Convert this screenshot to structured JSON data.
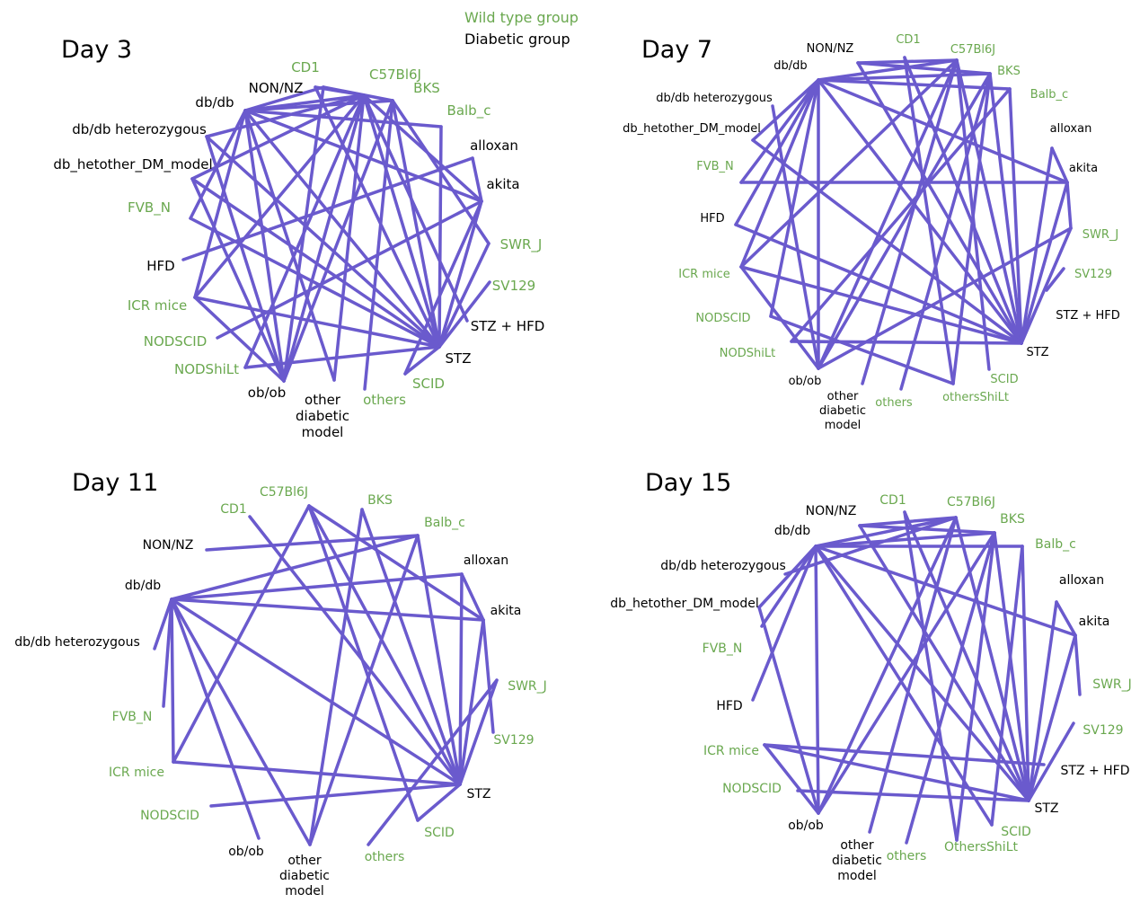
{
  "colors": {
    "wild": "#6aa84f",
    "diabetic": "#000000",
    "edge": "#6a5acd"
  },
  "legend": {
    "wild_label": "Wild type group",
    "diabetic_label": "Diabetic group"
  },
  "panels": [
    {
      "title": "Day 3",
      "nodes": [
        {
          "id": "NON/NZ",
          "label": "NON/NZ",
          "group": "diabetic"
        },
        {
          "id": "CD1",
          "label": "CD1",
          "group": "wild"
        },
        {
          "id": "C57Bl6J",
          "label": "C57Bl6J",
          "group": "wild"
        },
        {
          "id": "BKS",
          "label": "BKS",
          "group": "wild"
        },
        {
          "id": "Balb_c",
          "label": "Balb_c",
          "group": "wild"
        },
        {
          "id": "alloxan",
          "label": "alloxan",
          "group": "diabetic"
        },
        {
          "id": "akita",
          "label": "akita",
          "group": "diabetic"
        },
        {
          "id": "SWR_J",
          "label": "SWR_J",
          "group": "wild"
        },
        {
          "id": "SV129",
          "label": "SV129",
          "group": "wild"
        },
        {
          "id": "STZ + HFD",
          "label": "STZ + HFD",
          "group": "diabetic"
        },
        {
          "id": "STZ",
          "label": "STZ",
          "group": "diabetic"
        },
        {
          "id": "SCID",
          "label": "SCID",
          "group": "wild"
        },
        {
          "id": "others",
          "label": "others",
          "group": "wild"
        },
        {
          "id": "other diabetic model",
          "label": "other diabetic model",
          "group": "diabetic"
        },
        {
          "id": "ob/ob",
          "label": "ob/ob",
          "group": "diabetic"
        },
        {
          "id": "NODShiLt",
          "label": "NODShiLt",
          "group": "wild"
        },
        {
          "id": "NODSCID",
          "label": "NODSCID",
          "group": "wild"
        },
        {
          "id": "ICR mice",
          "label": "ICR mice",
          "group": "wild"
        },
        {
          "id": "HFD",
          "label": "HFD",
          "group": "diabetic"
        },
        {
          "id": "FVB_N",
          "label": "FVB_N",
          "group": "wild"
        },
        {
          "id": "db_hetother_DM_model",
          "label": "db_hetother_DM_model",
          "group": "diabetic"
        },
        {
          "id": "db/db heterozygous",
          "label": "db/db heterozygous",
          "group": "diabetic"
        },
        {
          "id": "db/db",
          "label": "db/db",
          "group": "diabetic"
        }
      ],
      "edges": [
        [
          "db/db",
          "CD1"
        ],
        [
          "db/db",
          "C57Bl6J"
        ],
        [
          "db/db",
          "BKS"
        ],
        [
          "db/db",
          "Balb_c"
        ],
        [
          "db/db",
          "akita"
        ],
        [
          "db/db",
          "STZ"
        ],
        [
          "db/db",
          "ob/ob"
        ],
        [
          "db/db",
          "other diabetic model"
        ],
        [
          "db/db",
          "ICR mice"
        ],
        [
          "db/db",
          "FVB_N"
        ],
        [
          "NON/NZ",
          "C57Bl6J"
        ],
        [
          "NON/NZ",
          "STZ"
        ],
        [
          "CD1",
          "BKS"
        ],
        [
          "CD1",
          "ob/ob"
        ],
        [
          "C57Bl6J",
          "akita"
        ],
        [
          "C57Bl6J",
          "STZ"
        ],
        [
          "C57Bl6J",
          "ob/ob"
        ],
        [
          "C57Bl6J",
          "NODShiLt"
        ],
        [
          "C57Bl6J",
          "other diabetic model"
        ],
        [
          "C57Bl6J",
          "ICR mice"
        ],
        [
          "C57Bl6J",
          "db/db heterozygous"
        ],
        [
          "C57Bl6J",
          "db_hetother_DM_model"
        ],
        [
          "C57Bl6J",
          "STZ + HFD"
        ],
        [
          "BKS",
          "STZ"
        ],
        [
          "BKS",
          "ob/ob"
        ],
        [
          "BKS",
          "SWR_J"
        ],
        [
          "BKS",
          "others"
        ],
        [
          "Balb_c",
          "STZ"
        ],
        [
          "alloxan",
          "akita"
        ],
        [
          "alloxan",
          "HFD"
        ],
        [
          "akita",
          "STZ"
        ],
        [
          "akita",
          "SCID"
        ],
        [
          "akita",
          "NODSCID"
        ],
        [
          "SWR_J",
          "STZ"
        ],
        [
          "SV129",
          "STZ"
        ],
        [
          "STZ",
          "ICR mice"
        ],
        [
          "STZ",
          "db_hetother_DM_model"
        ],
        [
          "STZ",
          "SCID"
        ],
        [
          "STZ",
          "NODShiLt"
        ],
        [
          "STZ",
          "FVB_N"
        ],
        [
          "db/db heterozygous",
          "ob/ob"
        ],
        [
          "db_hetother_DM_model",
          "ob/ob"
        ],
        [
          "ICR mice",
          "ob/ob"
        ],
        [
          "db/db heterozygous",
          "STZ"
        ]
      ]
    },
    {
      "title": "Day 7",
      "nodes": [
        {
          "id": "NON/NZ",
          "label": "NON/NZ",
          "group": "diabetic"
        },
        {
          "id": "CD1",
          "label": "CD1",
          "group": "wild"
        },
        {
          "id": "C57Bl6J",
          "label": "C57Bl6J",
          "group": "wild"
        },
        {
          "id": "BKS",
          "label": "BKS",
          "group": "wild"
        },
        {
          "id": "Balb_c",
          "label": "Balb_c",
          "group": "wild"
        },
        {
          "id": "alloxan",
          "label": "alloxan",
          "group": "diabetic"
        },
        {
          "id": "akita",
          "label": "akita",
          "group": "diabetic"
        },
        {
          "id": "SWR_J",
          "label": "SWR_J",
          "group": "wild"
        },
        {
          "id": "SV129",
          "label": "SV129",
          "group": "wild"
        },
        {
          "id": "STZ + HFD",
          "label": "STZ + HFD",
          "group": "diabetic"
        },
        {
          "id": "STZ",
          "label": "STZ",
          "group": "diabetic"
        },
        {
          "id": "SCID",
          "label": "SCID",
          "group": "wild"
        },
        {
          "id": "othersShiLt",
          "label": "othersShiLt",
          "group": "wild"
        },
        {
          "id": "others",
          "label": "others",
          "group": "wild"
        },
        {
          "id": "other diabetic model",
          "label": "other diabetic model",
          "group": "diabetic"
        },
        {
          "id": "ob/ob",
          "label": "ob/ob",
          "group": "diabetic"
        },
        {
          "id": "NODShiLt",
          "label": "NODShiLt",
          "group": "wild"
        },
        {
          "id": "NODSCID",
          "label": "NODSCID",
          "group": "wild"
        },
        {
          "id": "ICR mice",
          "label": "ICR mice",
          "group": "wild"
        },
        {
          "id": "HFD",
          "label": "HFD",
          "group": "diabetic"
        },
        {
          "id": "FVB_N",
          "label": "FVB_N",
          "group": "wild"
        },
        {
          "id": "db_hetother_DM_model",
          "label": "db_hetother_DM_model",
          "group": "diabetic"
        },
        {
          "id": "db/db heterozygous",
          "label": "db/db heterozygous",
          "group": "diabetic"
        },
        {
          "id": "db/db",
          "label": "db/db",
          "group": "diabetic"
        }
      ],
      "edges": [
        [
          "db/db",
          "C57Bl6J"
        ],
        [
          "db/db",
          "BKS"
        ],
        [
          "db/db",
          "Balb_c"
        ],
        [
          "db/db",
          "akita"
        ],
        [
          "db/db",
          "STZ"
        ],
        [
          "db/db",
          "ob/ob"
        ],
        [
          "db/db",
          "ICR mice"
        ],
        [
          "db/db",
          "FVB_N"
        ],
        [
          "db/db",
          "HFD"
        ],
        [
          "db/db",
          "NODSCID"
        ],
        [
          "db/db",
          "db_hetother_DM_model"
        ],
        [
          "NON/NZ",
          "C57Bl6J"
        ],
        [
          "NON/NZ",
          "STZ"
        ],
        [
          "NON/NZ",
          "BKS"
        ],
        [
          "CD1",
          "STZ"
        ],
        [
          "CD1",
          "othersShiLt"
        ],
        [
          "C57Bl6J",
          "STZ"
        ],
        [
          "C57Bl6J",
          "ob/ob"
        ],
        [
          "C57Bl6J",
          "other diabetic model"
        ],
        [
          "C57Bl6J",
          "ICR mice"
        ],
        [
          "C57Bl6J",
          "SCID"
        ],
        [
          "BKS",
          "STZ"
        ],
        [
          "BKS",
          "ob/ob"
        ],
        [
          "BKS",
          "others"
        ],
        [
          "BKS",
          "othersShiLt"
        ],
        [
          "Balb_c",
          "STZ"
        ],
        [
          "Balb_c",
          "NODShiLt"
        ],
        [
          "alloxan",
          "akita"
        ],
        [
          "alloxan",
          "STZ"
        ],
        [
          "akita",
          "SWR_J"
        ],
        [
          "akita",
          "STZ"
        ],
        [
          "akita",
          "FVB_N"
        ],
        [
          "SWR_J",
          "STZ"
        ],
        [
          "SWR_J",
          "ob/ob"
        ],
        [
          "SV129",
          "STZ + HFD"
        ],
        [
          "STZ",
          "ICR mice"
        ],
        [
          "STZ",
          "HFD"
        ],
        [
          "STZ",
          "NODShiLt"
        ],
        [
          "ob/ob",
          "db/db heterozygous"
        ],
        [
          "ob/ob",
          "ICR mice"
        ],
        [
          "db_hetother_DM_model",
          "STZ"
        ],
        [
          "NODSCID",
          "othersShiLt"
        ]
      ]
    },
    {
      "title": "Day 11",
      "nodes": [
        {
          "id": "NON/NZ",
          "label": "NON/NZ",
          "group": "diabetic"
        },
        {
          "id": "CD1",
          "label": "CD1",
          "group": "wild"
        },
        {
          "id": "C57Bl6J",
          "label": "C57Bl6J",
          "group": "wild"
        },
        {
          "id": "BKS",
          "label": "BKS",
          "group": "wild"
        },
        {
          "id": "Balb_c",
          "label": "Balb_c",
          "group": "wild"
        },
        {
          "id": "alloxan",
          "label": "alloxan",
          "group": "diabetic"
        },
        {
          "id": "akita",
          "label": "akita",
          "group": "diabetic"
        },
        {
          "id": "SWR_J",
          "label": "SWR_J",
          "group": "wild"
        },
        {
          "id": "SV129",
          "label": "SV129",
          "group": "wild"
        },
        {
          "id": "STZ",
          "label": "STZ",
          "group": "diabetic"
        },
        {
          "id": "SCID",
          "label": "SCID",
          "group": "wild"
        },
        {
          "id": "others",
          "label": "others",
          "group": "wild"
        },
        {
          "id": "other diabetic model",
          "label": "other diabetic model",
          "group": "diabetic"
        },
        {
          "id": "ob/ob",
          "label": "ob/ob",
          "group": "diabetic"
        },
        {
          "id": "NODSCID",
          "label": "NODSCID",
          "group": "wild"
        },
        {
          "id": "ICR mice",
          "label": "ICR mice",
          "group": "wild"
        },
        {
          "id": "FVB_N",
          "label": "FVB_N",
          "group": "wild"
        },
        {
          "id": "db/db heterozygous",
          "label": "db/db heterozygous",
          "group": "diabetic"
        },
        {
          "id": "db/db",
          "label": "db/db",
          "group": "diabetic"
        }
      ],
      "edges": [
        [
          "db/db",
          "Balb_c"
        ],
        [
          "db/db",
          "alloxan"
        ],
        [
          "db/db",
          "akita"
        ],
        [
          "db/db",
          "STZ"
        ],
        [
          "db/db",
          "ob/ob"
        ],
        [
          "db/db",
          "ICR mice"
        ],
        [
          "db/db",
          "db/db heterozygous"
        ],
        [
          "db/db",
          "FVB_N"
        ],
        [
          "NON/NZ",
          "Balb_c"
        ],
        [
          "CD1",
          "STZ"
        ],
        [
          "C57Bl6J",
          "ICR mice"
        ],
        [
          "C57Bl6J",
          "STZ"
        ],
        [
          "C57Bl6J",
          "akita"
        ],
        [
          "C57Bl6J",
          "SCID"
        ],
        [
          "BKS",
          "STZ"
        ],
        [
          "BKS",
          "other diabetic model"
        ],
        [
          "Balb_c",
          "STZ"
        ],
        [
          "Balb_c",
          "other diabetic model"
        ],
        [
          "alloxan",
          "akita"
        ],
        [
          "alloxan",
          "STZ"
        ],
        [
          "akita",
          "SV129"
        ],
        [
          "akita",
          "STZ"
        ],
        [
          "SWR_J",
          "STZ"
        ],
        [
          "SWR_J",
          "others"
        ],
        [
          "STZ",
          "ICR mice"
        ],
        [
          "STZ",
          "NODSCID"
        ],
        [
          "STZ",
          "SCID"
        ],
        [
          "db/db",
          "other diabetic model"
        ]
      ]
    },
    {
      "title": "Day 15",
      "nodes": [
        {
          "id": "NON/NZ",
          "label": "NON/NZ",
          "group": "diabetic"
        },
        {
          "id": "CD1",
          "label": "CD1",
          "group": "wild"
        },
        {
          "id": "C57Bl6J",
          "label": "C57Bl6J",
          "group": "wild"
        },
        {
          "id": "BKS",
          "label": "BKS",
          "group": "wild"
        },
        {
          "id": "Balb_c",
          "label": "Balb_c",
          "group": "wild"
        },
        {
          "id": "alloxan",
          "label": "alloxan",
          "group": "diabetic"
        },
        {
          "id": "akita",
          "label": "akita",
          "group": "diabetic"
        },
        {
          "id": "SWR_J",
          "label": "SWR_J",
          "group": "wild"
        },
        {
          "id": "SV129",
          "label": "SV129",
          "group": "wild"
        },
        {
          "id": "STZ + HFD",
          "label": "STZ + HFD",
          "group": "diabetic"
        },
        {
          "id": "STZ",
          "label": "STZ",
          "group": "diabetic"
        },
        {
          "id": "SCID",
          "label": "SCID",
          "group": "wild"
        },
        {
          "id": "OthersShiLt",
          "label": "OthersShiLt",
          "group": "wild"
        },
        {
          "id": "others",
          "label": "others",
          "group": "wild"
        },
        {
          "id": "other diabetic model",
          "label": "other diabetic model",
          "group": "diabetic"
        },
        {
          "id": "ob/ob",
          "label": "ob/ob",
          "group": "diabetic"
        },
        {
          "id": "NODSCID",
          "label": "NODSCID",
          "group": "wild"
        },
        {
          "id": "ICR mice",
          "label": "ICR mice",
          "group": "wild"
        },
        {
          "id": "HFD",
          "label": "HFD",
          "group": "diabetic"
        },
        {
          "id": "FVB_N",
          "label": "FVB_N",
          "group": "wild"
        },
        {
          "id": "db_hetother_DM_model",
          "label": "db_hetother_DM_model",
          "group": "diabetic"
        },
        {
          "id": "db/db heterozygous",
          "label": "db/db heterozygous",
          "group": "diabetic"
        },
        {
          "id": "db/db",
          "label": "db/db",
          "group": "diabetic"
        }
      ],
      "edges": [
        [
          "db/db",
          "C57Bl6J"
        ],
        [
          "db/db",
          "BKS"
        ],
        [
          "db/db",
          "Balb_c"
        ],
        [
          "db/db",
          "akita"
        ],
        [
          "db/db",
          "STZ"
        ],
        [
          "db/db",
          "ob/ob"
        ],
        [
          "db/db",
          "FVB_N"
        ],
        [
          "db/db",
          "HFD"
        ],
        [
          "db/db",
          "db_hetother_DM_model"
        ],
        [
          "db/db",
          "SCID"
        ],
        [
          "NON/NZ",
          "C57Bl6J"
        ],
        [
          "NON/NZ",
          "BKS"
        ],
        [
          "NON/NZ",
          "STZ"
        ],
        [
          "CD1",
          "STZ"
        ],
        [
          "CD1",
          "OthersShiLt"
        ],
        [
          "C57Bl6J",
          "ob/ob"
        ],
        [
          "C57Bl6J",
          "other diabetic model"
        ],
        [
          "C57Bl6J",
          "STZ"
        ],
        [
          "C57Bl6J",
          "db/db heterozygous"
        ],
        [
          "BKS",
          "STZ"
        ],
        [
          "BKS",
          "others"
        ],
        [
          "BKS",
          "OthersShiLt"
        ],
        [
          "BKS",
          "ob/ob"
        ],
        [
          "Balb_c",
          "STZ"
        ],
        [
          "Balb_c",
          "SCID"
        ],
        [
          "alloxan",
          "akita"
        ],
        [
          "alloxan",
          "STZ"
        ],
        [
          "akita",
          "SWR_J"
        ],
        [
          "akita",
          "STZ"
        ],
        [
          "SV129",
          "STZ"
        ],
        [
          "STZ",
          "ICR mice"
        ],
        [
          "STZ",
          "NODSCID"
        ],
        [
          "STZ + HFD",
          "ICR mice"
        ],
        [
          "ob/ob",
          "ICR mice"
        ],
        [
          "ob/ob",
          "db_hetother_DM_model"
        ]
      ]
    }
  ]
}
